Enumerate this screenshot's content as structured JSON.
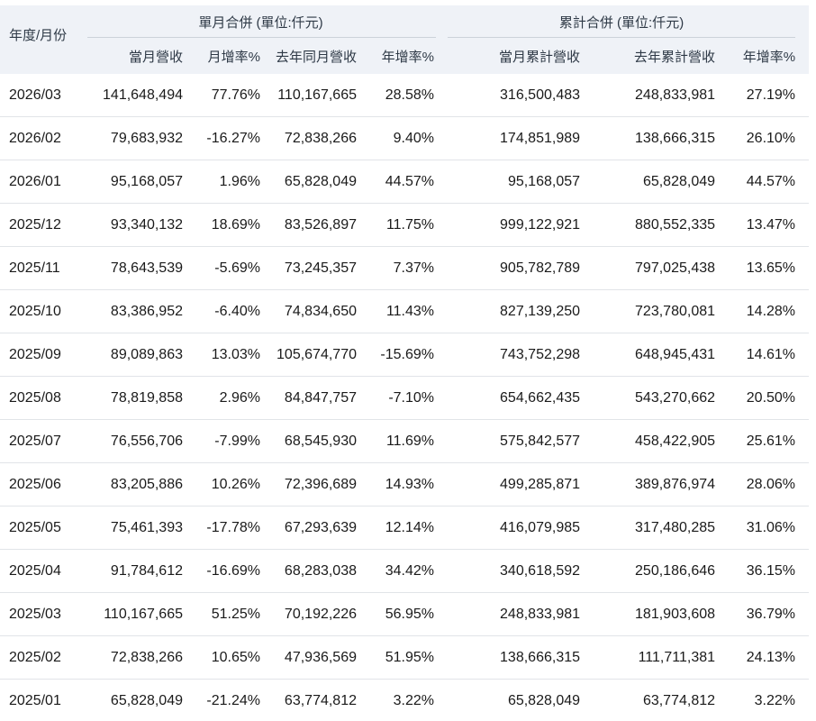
{
  "chart_data": {
    "type": "table",
    "groups": [
      {
        "label": "單月合併 (單位:仟元)"
      },
      {
        "label": "累計合併 (單位:仟元)"
      }
    ],
    "columns": [
      "年度/月份",
      "當月營收",
      "月增率%",
      "去年同月營收",
      "年增率%",
      "當月累計營收",
      "去年累計營收",
      "年增率%"
    ],
    "rows": [
      [
        "2026/03",
        "141,648,494",
        "77.76%",
        "110,167,665",
        "28.58%",
        "316,500,483",
        "248,833,981",
        "27.19%"
      ],
      [
        "2026/02",
        "79,683,932",
        "-16.27%",
        "72,838,266",
        "9.40%",
        "174,851,989",
        "138,666,315",
        "26.10%"
      ],
      [
        "2026/01",
        "95,168,057",
        "1.96%",
        "65,828,049",
        "44.57%",
        "95,168,057",
        "65,828,049",
        "44.57%"
      ],
      [
        "2025/12",
        "93,340,132",
        "18.69%",
        "83,526,897",
        "11.75%",
        "999,122,921",
        "880,552,335",
        "13.47%"
      ],
      [
        "2025/11",
        "78,643,539",
        "-5.69%",
        "73,245,357",
        "7.37%",
        "905,782,789",
        "797,025,438",
        "13.65%"
      ],
      [
        "2025/10",
        "83,386,952",
        "-6.40%",
        "74,834,650",
        "11.43%",
        "827,139,250",
        "723,780,081",
        "14.28%"
      ],
      [
        "2025/09",
        "89,089,863",
        "13.03%",
        "105,674,770",
        "-15.69%",
        "743,752,298",
        "648,945,431",
        "14.61%"
      ],
      [
        "2025/08",
        "78,819,858",
        "2.96%",
        "84,847,757",
        "-7.10%",
        "654,662,435",
        "543,270,662",
        "20.50%"
      ],
      [
        "2025/07",
        "76,556,706",
        "-7.99%",
        "68,545,930",
        "11.69%",
        "575,842,577",
        "458,422,905",
        "25.61%"
      ],
      [
        "2025/06",
        "83,205,886",
        "10.26%",
        "72,396,689",
        "14.93%",
        "499,285,871",
        "389,876,974",
        "28.06%"
      ],
      [
        "2025/05",
        "75,461,393",
        "-17.78%",
        "67,293,639",
        "12.14%",
        "416,079,985",
        "317,480,285",
        "31.06%"
      ],
      [
        "2025/04",
        "91,784,612",
        "-16.69%",
        "68,283,038",
        "34.42%",
        "340,618,592",
        "250,186,646",
        "36.15%"
      ],
      [
        "2025/03",
        "110,167,665",
        "51.25%",
        "70,192,226",
        "56.95%",
        "248,833,981",
        "181,903,608",
        "36.79%"
      ],
      [
        "2025/02",
        "72,838,266",
        "10.65%",
        "47,936,569",
        "51.95%",
        "138,666,315",
        "111,711,381",
        "24.13%"
      ],
      [
        "2025/01",
        "65,828,049",
        "-21.24%",
        "63,774,812",
        "3.22%",
        "65,828,049",
        "63,774,812",
        "3.22%"
      ]
    ]
  },
  "colors": {
    "header_bg": "#eff2f7",
    "header_text": "#2e3946",
    "body_text": "#1a1a1a",
    "row_divider": "#e1e4e8",
    "group_rule": "#ccd2d9"
  }
}
